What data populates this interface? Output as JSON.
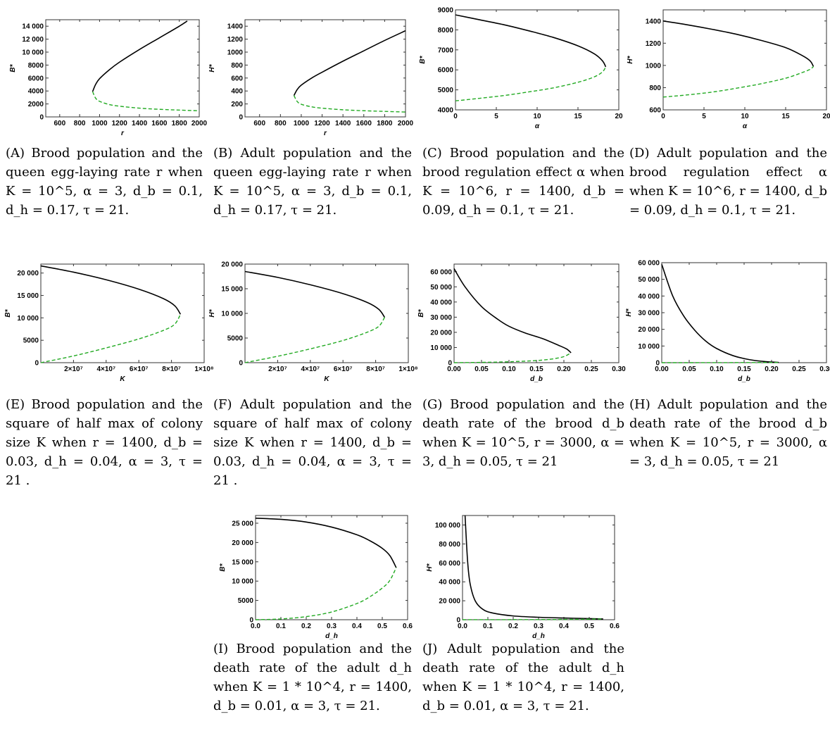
{
  "colors": {
    "stable": "#000000",
    "unstable": "#22aa22",
    "frame": "#333333"
  },
  "panels": [
    {
      "id": "a",
      "caption_label": "(A)",
      "caption_text": "Brood population and the queen egg-laying rate r when K = 10^5, α = 3, d_b = 0.1, d_h = 0.17, τ = 21.",
      "chart_data": {
        "type": "line",
        "xlabel": "r",
        "ylabel": "B*",
        "xlim": [
          460,
          2000
        ],
        "ylim": [
          0,
          15000
        ],
        "xticks": [
          600,
          800,
          1000,
          1200,
          1400,
          1600,
          1800,
          2000
        ],
        "xtick_labels": [
          "600",
          "800",
          "1000",
          "1200",
          "1400",
          "1600",
          "1800",
          "2000"
        ],
        "yticks": [
          0,
          2000,
          4000,
          6000,
          8000,
          10000,
          12000,
          14000
        ],
        "ytick_labels": [
          "0",
          "2000",
          "4000",
          "6000",
          "8000",
          "10 000",
          "12 000",
          "14 000"
        ],
        "series": [
          {
            "style": "solid",
            "x": [
              930,
              960,
              1000,
              1100,
              1200,
              1400,
              1600,
              1800,
              1880
            ],
            "y": [
              3900,
              5000,
              5900,
              7300,
              8450,
              10400,
              12200,
              14000,
              14800
            ]
          },
          {
            "style": "dashed",
            "x": [
              930,
              960,
              1000,
              1100,
              1200,
              1400,
              1600,
              1800,
              2000
            ],
            "y": [
              3900,
              2900,
              2400,
              1900,
              1650,
              1350,
              1170,
              1050,
              950
            ]
          }
        ]
      }
    },
    {
      "id": "b",
      "caption_label": "(B)",
      "caption_text": "Adult population and the queen egg-laying rate r when K = 10^5, α = 3, d_b = 0.1, d_h = 0.17, τ = 21.",
      "chart_data": {
        "type": "line",
        "xlabel": "r",
        "ylabel": "H*",
        "xlim": [
          460,
          2000
        ],
        "ylim": [
          0,
          1500
        ],
        "xticks": [
          600,
          800,
          1000,
          1200,
          1400,
          1600,
          1800,
          2000
        ],
        "xtick_labels": [
          "600",
          "800",
          "1000",
          "1200",
          "1400",
          "1600",
          "1800",
          "2000"
        ],
        "yticks": [
          0,
          200,
          400,
          600,
          800,
          1000,
          1200,
          1400
        ],
        "ytick_labels": [
          "0",
          "200",
          "400",
          "600",
          "800",
          "1000",
          "1200",
          "1400"
        ],
        "series": [
          {
            "style": "solid",
            "x": [
              930,
              960,
              1000,
              1100,
              1200,
              1400,
              1600,
              1800,
              2000
            ],
            "y": [
              330,
              420,
              490,
              600,
              690,
              860,
              1020,
              1180,
              1330
            ]
          },
          {
            "style": "dashed",
            "x": [
              930,
              960,
              1000,
              1100,
              1200,
              1400,
              1600,
              1800,
              2000
            ],
            "y": [
              330,
              240,
              195,
              155,
              135,
              110,
              95,
              85,
              75
            ]
          }
        ]
      }
    },
    {
      "id": "c",
      "caption_label": "(C)",
      "caption_text": "Brood population and the brood regulation effect α when K = 10^6, r = 1400, d_b = 0.09, d_h = 0.1, τ = 21.",
      "chart_data": {
        "type": "line",
        "xlabel": "α",
        "ylabel": "B*",
        "xlim": [
          0,
          20
        ],
        "ylim": [
          4000,
          9000
        ],
        "xticks": [
          0,
          5,
          10,
          15,
          20
        ],
        "xtick_labels": [
          "0",
          "5",
          "10",
          "15",
          "20"
        ],
        "yticks": [
          4000,
          5000,
          6000,
          7000,
          8000,
          9000
        ],
        "ytick_labels": [
          "4000",
          "5000",
          "6000",
          "7000",
          "8000",
          "9000"
        ],
        "series": [
          {
            "style": "solid",
            "x": [
              0,
              3,
              6,
              9,
              12,
              15,
              17,
              18,
              18.4
            ],
            "y": [
              8750,
              8500,
              8250,
              7950,
              7620,
              7200,
              6800,
              6450,
              6150
            ]
          },
          {
            "style": "dashed",
            "x": [
              0,
              3,
              6,
              9,
              12,
              15,
              17,
              18,
              18.4
            ],
            "y": [
              4450,
              4580,
              4720,
              4900,
              5100,
              5380,
              5650,
              5900,
              6150
            ]
          }
        ]
      }
    },
    {
      "id": "d",
      "caption_label": "(D)",
      "caption_text": "Adult population and the brood regulation effect α when K = 10^6, r = 1400, d_b = 0.09, d_h = 0.1, τ = 21.",
      "chart_data": {
        "type": "line",
        "xlabel": "α",
        "ylabel": "H*",
        "xlim": [
          0,
          20
        ],
        "ylim": [
          600,
          1500
        ],
        "xticks": [
          0,
          5,
          10,
          15,
          20
        ],
        "xtick_labels": [
          "0",
          "5",
          "10",
          "15",
          "20"
        ],
        "yticks": [
          600,
          800,
          1000,
          1200,
          1400
        ],
        "ytick_labels": [
          "600",
          "800",
          "1000",
          "1200",
          "1400"
        ],
        "series": [
          {
            "style": "solid",
            "x": [
              0,
              3,
              6,
              9,
              12,
              15,
              17,
              18,
              18.4
            ],
            "y": [
              1400,
              1365,
              1325,
              1280,
              1225,
              1160,
              1090,
              1040,
              990
            ]
          },
          {
            "style": "dashed",
            "x": [
              0,
              3,
              6,
              9,
              12,
              15,
              17,
              18,
              18.4
            ],
            "y": [
              715,
              735,
              760,
              795,
              835,
              885,
              935,
              965,
              990
            ]
          }
        ]
      }
    },
    {
      "id": "e",
      "caption_label": "(E)",
      "caption_text": "Brood population and the square of half max of colony size K when r = 1400, d_b = 0.03, d_h = 0.04, α = 3, τ = 21 .",
      "chart_data": {
        "type": "line",
        "xlabel": "K",
        "ylabel": "B*",
        "xlim": [
          0,
          100000000
        ],
        "ylim": [
          0,
          22000
        ],
        "xticks": [
          20000000,
          40000000,
          60000000,
          80000000,
          100000000
        ],
        "xtick_labels": [
          "2×10⁷",
          "4×10⁷",
          "6×10⁷",
          "8×10⁷",
          "1×10⁸"
        ],
        "yticks": [
          0,
          5000,
          10000,
          15000,
          20000
        ],
        "ytick_labels": [
          "0",
          "5000",
          "10 000",
          "15 000",
          "20 000"
        ],
        "series": [
          {
            "style": "solid",
            "x": [
              0,
              20000000,
              40000000,
              60000000,
              75000000,
              82000000,
              85500000
            ],
            "y": [
              21600,
              20200,
              18500,
              16400,
              14300,
              12700,
              10800
            ]
          },
          {
            "style": "dashed",
            "x": [
              0,
              20000000,
              40000000,
              60000000,
              75000000,
              82000000,
              85500000
            ],
            "y": [
              0,
              1500,
              3300,
              5300,
              7200,
              8600,
              10800
            ]
          }
        ]
      }
    },
    {
      "id": "f",
      "caption_label": "(F)",
      "caption_text": "Adult population and the square of half max of colony size K when r = 1400, d_b = 0.03, d_h = 0.04, α = 3, τ = 21 .",
      "chart_data": {
        "type": "line",
        "xlabel": "K",
        "ylabel": "H*",
        "xlim": [
          0,
          100000000
        ],
        "ylim": [
          0,
          20000
        ],
        "xticks": [
          20000000,
          40000000,
          60000000,
          80000000,
          100000000
        ],
        "xtick_labels": [
          "2×10⁷",
          "4×10⁷",
          "6×10⁷",
          "8×10⁷",
          "1×10⁸"
        ],
        "yticks": [
          0,
          5000,
          10000,
          15000,
          20000
        ],
        "ytick_labels": [
          "0",
          "5000",
          "10 000",
          "15 000",
          "20 000"
        ],
        "series": [
          {
            "style": "solid",
            "x": [
              0,
              20000000,
              40000000,
              60000000,
              75000000,
              82000000,
              85500000
            ],
            "y": [
              18500,
              17300,
              15800,
              14000,
              12200,
              10800,
              9200
            ]
          },
          {
            "style": "dashed",
            "x": [
              0,
              20000000,
              40000000,
              60000000,
              75000000,
              82000000,
              85500000
            ],
            "y": [
              0,
              1300,
              2800,
              4500,
              6200,
              7400,
              9200
            ]
          }
        ]
      }
    },
    {
      "id": "g",
      "caption_label": "(G)",
      "caption_text": "Brood population and the death rate of the brood d_b when K = 10^5, r = 3000, α = 3, d_h = 0.05, τ = 21",
      "chart_data": {
        "type": "line",
        "xlabel": "d_b",
        "ylabel": "B*",
        "xlim": [
          0,
          0.3
        ],
        "ylim": [
          0,
          65000
        ],
        "xticks": [
          0,
          0.05,
          0.1,
          0.15,
          0.2,
          0.25,
          0.3
        ],
        "xtick_labels": [
          "0.00",
          "0.05",
          "0.10",
          "0.15",
          "0.20",
          "0.25",
          "0.30"
        ],
        "yticks": [
          0,
          10000,
          20000,
          30000,
          40000,
          50000,
          60000
        ],
        "ytick_labels": [
          "0",
          "10 000",
          "20 000",
          "30 000",
          "40 000",
          "50 000",
          "60 000"
        ],
        "series": [
          {
            "style": "solid",
            "x": [
              0,
              0.02,
              0.05,
              0.08,
              0.1,
              0.13,
              0.16,
              0.19,
              0.205,
              0.213
            ],
            "y": [
              62000,
              50000,
              37000,
              28500,
              24000,
              19500,
              16000,
              11500,
              9000,
              6500
            ]
          },
          {
            "style": "dashed",
            "x": [
              0,
              0.05,
              0.1,
              0.15,
              0.18,
              0.2,
              0.213
            ],
            "y": [
              0,
              200,
              600,
              1400,
              2500,
              4000,
              6500
            ]
          }
        ]
      }
    },
    {
      "id": "h",
      "caption_label": "(H)",
      "caption_text": "Adult population and the death rate of the brood d_b when K = 10^5, r = 3000, α = 3, d_h = 0.05, τ = 21",
      "chart_data": {
        "type": "line",
        "xlabel": "d_b",
        "ylabel": "H*",
        "xlim": [
          0,
          0.3
        ],
        "ylim": [
          0,
          60000
        ],
        "xticks": [
          0,
          0.05,
          0.1,
          0.15,
          0.2,
          0.25,
          0.3
        ],
        "xtick_labels": [
          "0.00",
          "0.05",
          "0.10",
          "0.15",
          "0.20",
          "0.25",
          "0.30"
        ],
        "yticks": [
          0,
          10000,
          20000,
          30000,
          40000,
          50000,
          60000
        ],
        "ytick_labels": [
          "0",
          "10 000",
          "20 000",
          "30 000",
          "40 000",
          "50 000",
          "60 000"
        ],
        "series": [
          {
            "style": "solid",
            "x": [
              0,
              0.02,
              0.04,
              0.06,
              0.08,
              0.1,
              0.13,
              0.16,
              0.19,
              0.213
            ],
            "y": [
              59000,
              40000,
              28000,
              19500,
              13000,
              8500,
              4200,
              1800,
              600,
              150
            ]
          },
          {
            "style": "dashed",
            "x": [
              0,
              0.1,
              0.213
            ],
            "y": [
              0,
              20,
              150
            ]
          }
        ]
      }
    },
    {
      "id": "i",
      "caption_label": "(I)",
      "caption_text": "Brood population and the death rate of the adult d_h when K = 1 * 10^4, r = 1400, d_b = 0.01, α = 3, τ = 21.",
      "chart_data": {
        "type": "line",
        "xlabel": "d_h",
        "ylabel": "B*",
        "xlim": [
          0,
          0.6
        ],
        "ylim": [
          0,
          27000
        ],
        "xticks": [
          0,
          0.1,
          0.2,
          0.3,
          0.4,
          0.5,
          0.6
        ],
        "xtick_labels": [
          "0.0",
          "0.1",
          "0.2",
          "0.3",
          "0.4",
          "0.5",
          "0.6"
        ],
        "yticks": [
          0,
          5000,
          10000,
          15000,
          20000,
          25000
        ],
        "ytick_labels": [
          "0",
          "5000",
          "10 000",
          "15 000",
          "20 000",
          "25 000"
        ],
        "series": [
          {
            "style": "solid",
            "x": [
              0,
              0.1,
              0.2,
              0.3,
              0.4,
              0.45,
              0.5,
              0.53,
              0.555
            ],
            "y": [
              26300,
              26000,
              25300,
              24000,
              22000,
              20500,
              18500,
              16600,
              13500
            ]
          },
          {
            "style": "dashed",
            "x": [
              0,
              0.1,
              0.2,
              0.3,
              0.4,
              0.45,
              0.5,
              0.53,
              0.555
            ],
            "y": [
              0,
              200,
              800,
              2000,
              4200,
              5900,
              8200,
              10200,
              13500
            ]
          }
        ]
      }
    },
    {
      "id": "j",
      "caption_label": "(J)",
      "caption_text": "Adult population and the death rate of the adult d_h when K = 1 * 10^4, r = 1400, d_b = 0.01, α = 3, τ = 21.",
      "chart_data": {
        "type": "line",
        "xlabel": "d_h",
        "ylabel": "H*",
        "xlim": [
          0,
          0.6
        ],
        "ylim": [
          0,
          110000
        ],
        "xticks": [
          0,
          0.1,
          0.2,
          0.3,
          0.4,
          0.5,
          0.6
        ],
        "xtick_labels": [
          "0.0",
          "0.1",
          "0.2",
          "0.3",
          "0.4",
          "0.5",
          "0.6"
        ],
        "yticks": [
          0,
          20000,
          40000,
          60000,
          80000,
          100000
        ],
        "ytick_labels": [
          "0",
          "20 000",
          "40 000",
          "60 000",
          "80 000",
          "100 000"
        ],
        "series": [
          {
            "style": "solid",
            "x": [
              0.01,
              0.02,
              0.03,
              0.05,
              0.08,
              0.12,
              0.2,
              0.3,
              0.4,
              0.5,
              0.555
            ],
            "y": [
              110000,
              62000,
              38000,
              20000,
              11000,
              7000,
              4000,
              2600,
              1800,
              1200,
              800
            ]
          },
          {
            "style": "dashed",
            "x": [
              0,
              0.2,
              0.4,
              0.555
            ],
            "y": [
              0,
              100,
              300,
              800
            ]
          }
        ]
      }
    }
  ]
}
